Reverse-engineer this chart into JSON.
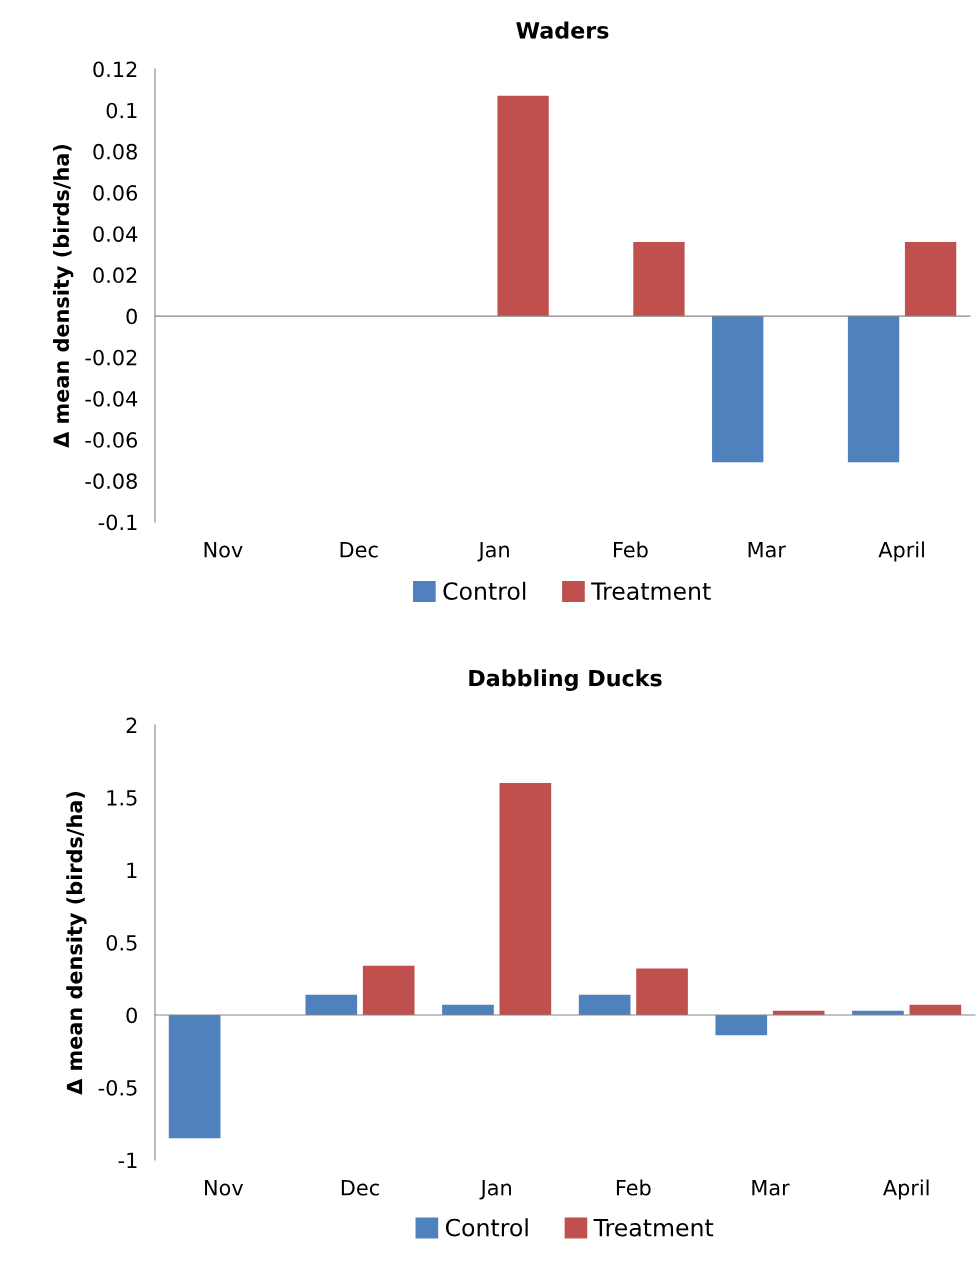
{
  "chart_data": [
    {
      "type": "bar",
      "title": "Waders",
      "ylabel": "Δ mean density (birds/ha)",
      "categories": [
        "Nov",
        "Dec",
        "Jan",
        "Feb",
        "Mar",
        "April"
      ],
      "series": [
        {
          "name": "Control",
          "color": "#4f81bd",
          "values": [
            0,
            0,
            0,
            0,
            -0.071,
            -0.071
          ]
        },
        {
          "name": "Treatment",
          "color": "#c0504d",
          "values": [
            0,
            0,
            0.107,
            0.036,
            0,
            0.036
          ]
        }
      ],
      "ylim": [
        -0.1,
        0.12
      ],
      "yticks": [
        -0.1,
        -0.08,
        -0.06,
        -0.04,
        -0.02,
        0,
        0.02,
        0.04,
        0.06,
        0.08,
        0.1,
        0.12
      ],
      "legend": "bottom"
    },
    {
      "type": "bar",
      "title": "Dabbling Ducks",
      "ylabel": "Δ mean density (birds/ha)",
      "categories": [
        "Nov",
        "Dec",
        "Jan",
        "Feb",
        "Mar",
        "April"
      ],
      "series": [
        {
          "name": "Control",
          "color": "#4f81bd",
          "values": [
            -0.85,
            0.14,
            0.07,
            0.14,
            -0.14,
            0.03
          ]
        },
        {
          "name": "Treatment",
          "color": "#c0504d",
          "values": [
            0,
            0.34,
            1.6,
            0.32,
            0.03,
            0.07
          ]
        }
      ],
      "ylim": [
        -1,
        2
      ],
      "yticks": [
        -1,
        -0.5,
        0,
        0.5,
        1,
        1.5,
        2
      ],
      "legend": "bottom"
    }
  ]
}
